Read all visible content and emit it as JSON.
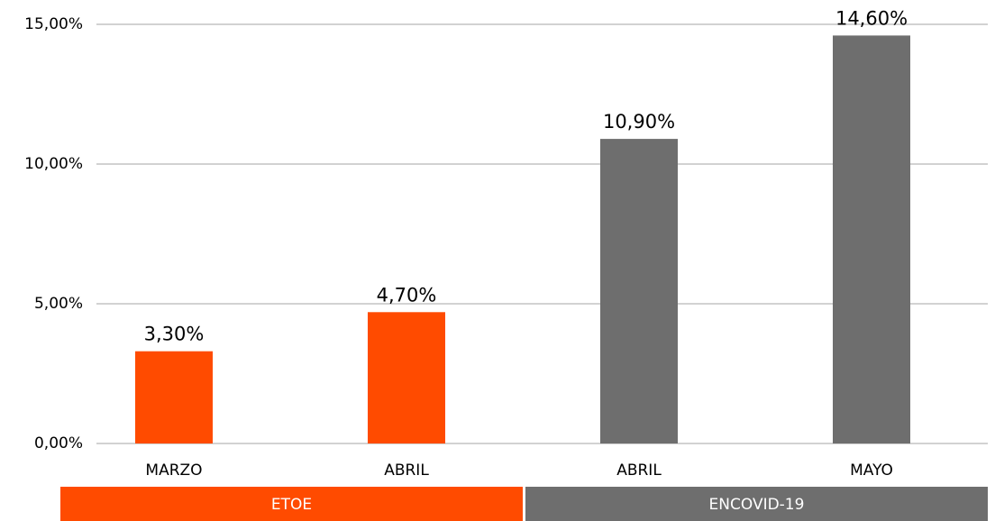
{
  "chart_data": {
    "type": "bar",
    "categories": [
      "MARZO",
      "ABRIL",
      "ABRIL",
      "MAYO"
    ],
    "series": [
      {
        "name": "ETOE",
        "color": "#ff4b00",
        "values": [
          3.3,
          4.7,
          null,
          null
        ],
        "value_labels": [
          "3,30%",
          "4,70%",
          null,
          null
        ]
      },
      {
        "name": "ENCOVID-19",
        "color": "#6e6e6e",
        "values": [
          null,
          null,
          10.9,
          14.6
        ],
        "value_labels": [
          null,
          null,
          "10,90%",
          "14,60%"
        ]
      }
    ],
    "ylim": [
      0,
      15
    ],
    "yticks": [
      {
        "value": 0,
        "label": "0,00%"
      },
      {
        "value": 5,
        "label": "5,00%"
      },
      {
        "value": 10,
        "label": "10,00%"
      },
      {
        "value": 15,
        "label": "15,00%"
      }
    ],
    "grid": true
  }
}
